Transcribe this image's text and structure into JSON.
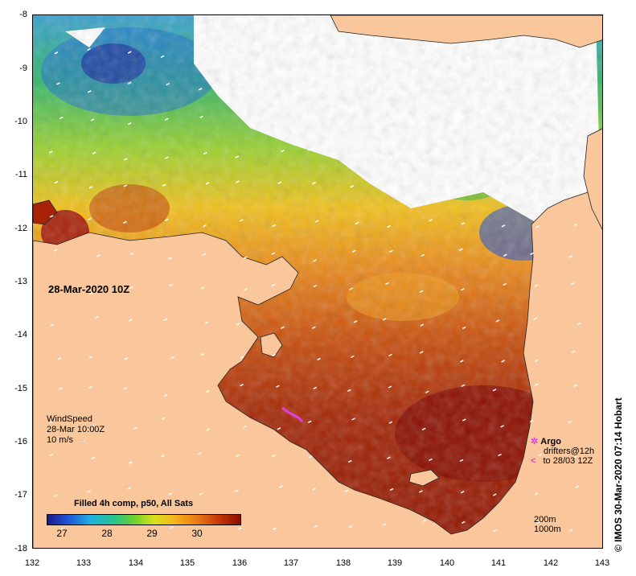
{
  "map": {
    "date_label": "28-Mar-2020 10Z",
    "credit": "© IMOS 30-Mar-2020 07:14 Hobart",
    "x_ticks": [
      "132",
      "133",
      "134",
      "135",
      "136",
      "137",
      "138",
      "139",
      "140",
      "141",
      "142",
      "143"
    ],
    "y_ticks": [
      "-8",
      "-9",
      "-10",
      "-11",
      "-12",
      "-13",
      "-14",
      "-15",
      "-16",
      "-17",
      "-18"
    ],
    "wind": {
      "line1": "WindSpeed",
      "line2": "28-Mar 10:00Z",
      "line3": "10 m/s"
    },
    "legend_argo": {
      "argo": "Argo",
      "drifters": "drifters@12h",
      "to": "to 28/03 12Z"
    },
    "colorbar": {
      "title": "Filled 4h comp, p50, All Sats",
      "ticks": [
        "27",
        "28",
        "29",
        "30"
      ]
    },
    "depth": {
      "d1": "200m",
      "d2": "1000m"
    },
    "colors": {
      "land": "#f9c79b",
      "no_data": "#ffffff",
      "warm": "#9a1a00",
      "mid": "#e8821a",
      "cool": "#2ab46a",
      "cold": "#1c2fa0",
      "argo": "#e23ee0"
    }
  }
}
